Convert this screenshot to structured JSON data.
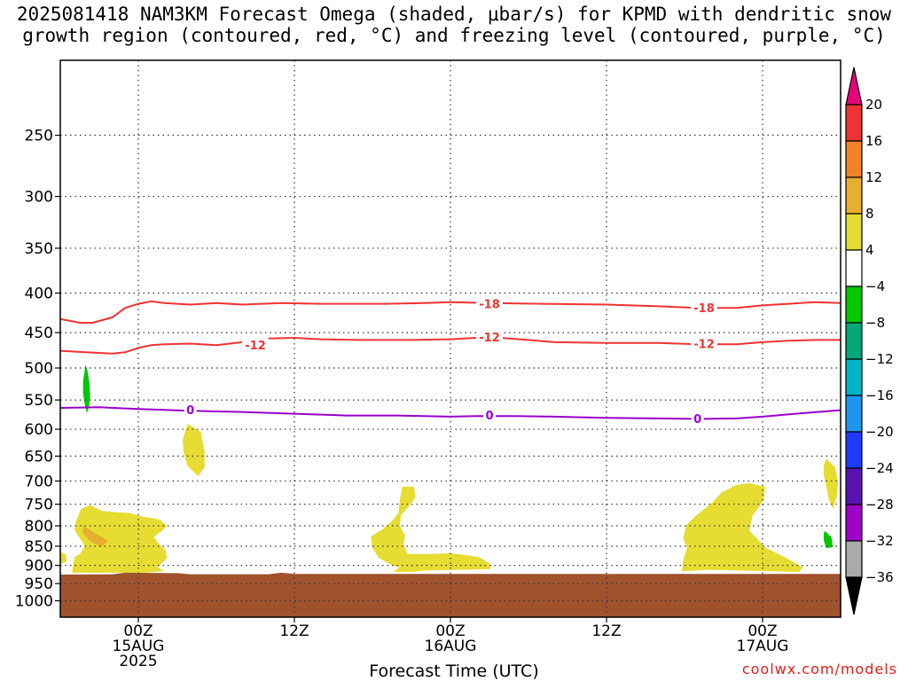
{
  "title_line1": "2025081418 NAM3KM Forecast Omega (shaded, μbar/s) for KPMD with dendritic snow",
  "title_line2": "growth region (contoured, red, °C) and freezing level (contoured, purple, °C)",
  "credit": "coolwx.com/models",
  "colors": {
    "ground": "#a0522d",
    "dgz_contour": "#ee3333",
    "freezing_contour": "#9900cc",
    "omega_pos_4_8": "#e6dc32",
    "omega_pos_8_12": "#e6af2d",
    "omega_pos_12_16": "#f08228",
    "omega_neg_4_8": "#00c800"
  },
  "chart_data": {
    "type": "heatmap",
    "title": "2025081418 NAM3KM Forecast Omega (shaded, μbar/s) for KPMD with dendritic snow growth region (contoured, red, °C) and freezing level (contoured, purple, °C)",
    "xlabel": "Forecast Time (UTC)",
    "ylabel": "",
    "x_range_hours_from_init": [
      0,
      60
    ],
    "y_axis": {
      "scale": "log",
      "inverted": true,
      "range_hPa": [
        1050,
        200
      ],
      "ticks": [
        250,
        300,
        350,
        400,
        450,
        500,
        550,
        600,
        650,
        700,
        750,
        800,
        850,
        900,
        950,
        1000
      ]
    },
    "x_ticks": [
      {
        "label_line1": "00Z",
        "label_line2": "15AUG",
        "label_line3": "2025"
      },
      {
        "label_line1": "12Z",
        "label_line2": "",
        "label_line3": ""
      },
      {
        "label_line1": "00Z",
        "label_line2": "16AUG",
        "label_line3": ""
      },
      {
        "label_line1": "12Z",
        "label_line2": "",
        "label_line3": ""
      },
      {
        "label_line1": "00Z",
        "label_line2": "17AUG",
        "label_line3": ""
      }
    ],
    "x_tick_hours": [
      6,
      18,
      30,
      42,
      54
    ],
    "grid": true,
    "colorbar": {
      "levels": [
        20,
        16,
        12,
        8,
        4,
        -4,
        -8,
        -12,
        -16,
        -20,
        -24,
        -28,
        -32,
        -36
      ],
      "colors": [
        "#ee3333",
        "#f08228",
        "#e6af2d",
        "#e6dc32",
        "#ffffff",
        "#00c800",
        "#00aa78",
        "#00b4c8",
        "#1e96f0",
        "#1e3cff",
        "#5a14b4",
        "#a000c8",
        "#aaaaaa"
      ],
      "top_arrow_color": "#e6007a",
      "bottom_arrow_color": "#000000"
    },
    "contours": [
      {
        "name": "-18",
        "color": "#ee3333",
        "points": [
          [
            0,
            432
          ],
          [
            1.5,
            437
          ],
          [
            2.5,
            437
          ],
          [
            4,
            430
          ],
          [
            5,
            418
          ],
          [
            6,
            413
          ],
          [
            7,
            410
          ],
          [
            8,
            412
          ],
          [
            10,
            414
          ],
          [
            12,
            412
          ],
          [
            14,
            414
          ],
          [
            17,
            412
          ],
          [
            20,
            413
          ],
          [
            25,
            413
          ],
          [
            28,
            412
          ],
          [
            30,
            411
          ],
          [
            33,
            412
          ],
          [
            37,
            413
          ],
          [
            42,
            414
          ],
          [
            46,
            416
          ],
          [
            49,
            418
          ],
          [
            52,
            418
          ],
          [
            54,
            415
          ],
          [
            56,
            413
          ],
          [
            58,
            411
          ],
          [
            60,
            412
          ]
        ],
        "labels": [
          {
            "text": "-18",
            "x": 33,
            "p": 413
          },
          {
            "text": "-18",
            "x": 49.5,
            "p": 418
          }
        ]
      },
      {
        "name": "-12",
        "color": "#ee3333",
        "points": [
          [
            0,
            475
          ],
          [
            2,
            477
          ],
          [
            4,
            479
          ],
          [
            5,
            477
          ],
          [
            6,
            471
          ],
          [
            7,
            467
          ],
          [
            8,
            466
          ],
          [
            10,
            465
          ],
          [
            12,
            467
          ],
          [
            14,
            463
          ],
          [
            16,
            458
          ],
          [
            18,
            457
          ],
          [
            20,
            459
          ],
          [
            23,
            460
          ],
          [
            27,
            460
          ],
          [
            30,
            459
          ],
          [
            33,
            456
          ],
          [
            36,
            460
          ],
          [
            38,
            463
          ],
          [
            42,
            464
          ],
          [
            46,
            464
          ],
          [
            49,
            466
          ],
          [
            52,
            466
          ],
          [
            54,
            463
          ],
          [
            56,
            461
          ],
          [
            58,
            460
          ],
          [
            60,
            460
          ]
        ],
        "labels": [
          {
            "text": "-12",
            "x": 15,
            "p": 467
          },
          {
            "text": "-12",
            "x": 33,
            "p": 456
          },
          {
            "text": "-12",
            "x": 49.5,
            "p": 465
          }
        ]
      },
      {
        "name": "0",
        "color": "#9900cc",
        "points": [
          [
            0,
            563
          ],
          [
            3,
            562
          ],
          [
            6,
            565
          ],
          [
            10,
            568
          ],
          [
            14,
            570
          ],
          [
            18,
            573
          ],
          [
            22,
            576
          ],
          [
            26,
            576
          ],
          [
            30,
            578
          ],
          [
            32,
            577
          ],
          [
            35,
            577
          ],
          [
            38,
            578
          ],
          [
            42,
            580
          ],
          [
            46,
            581
          ],
          [
            49,
            582
          ],
          [
            52,
            581
          ],
          [
            54,
            578
          ],
          [
            57,
            572
          ],
          [
            60,
            567
          ]
        ],
        "labels": [
          {
            "text": "0",
            "x": 10,
            "p": 566
          },
          {
            "text": "0",
            "x": 33,
            "p": 575
          },
          {
            "text": "0",
            "x": 49,
            "p": 581
          }
        ]
      }
    ],
    "shaded_regions": [
      {
        "name": "omega-neg-4-8-a",
        "class": "-4 to -8",
        "color": "#00c800",
        "points": [
          [
            1.95,
            495
          ],
          [
            2.1,
            505
          ],
          [
            2.25,
            525
          ],
          [
            2.3,
            545
          ],
          [
            2.2,
            560
          ],
          [
            2.05,
            572
          ],
          [
            1.9,
            560
          ],
          [
            1.75,
            540
          ],
          [
            1.75,
            520
          ]
        ]
      },
      {
        "name": "omega-neg-4-8-b",
        "class": "-4 to -8",
        "color": "#00c800",
        "points": [
          [
            58.8,
            812
          ],
          [
            59.3,
            828
          ],
          [
            59.4,
            852
          ],
          [
            58.9,
            855
          ],
          [
            58.7,
            835
          ],
          [
            58.7,
            818
          ]
        ]
      },
      {
        "name": "omega-pos-4-8-a",
        "class": "4 to 8",
        "color": "#e6dc32",
        "points": [
          [
            1.1,
            878
          ],
          [
            0.9,
            920
          ],
          [
            6.5,
            920
          ],
          [
            8,
            915
          ],
          [
            7.5,
            905
          ],
          [
            8.2,
            880
          ],
          [
            8.1,
            860
          ],
          [
            7.6,
            845
          ],
          [
            7.2,
            828
          ],
          [
            7.8,
            812
          ],
          [
            8.2,
            800
          ],
          [
            7.6,
            785
          ],
          [
            6.3,
            778
          ],
          [
            5.3,
            770
          ],
          [
            4.2,
            768
          ],
          [
            3.2,
            765
          ],
          [
            2.3,
            752
          ],
          [
            1.6,
            760
          ],
          [
            1.2,
            790
          ],
          [
            1.1,
            810
          ],
          [
            1.5,
            830
          ],
          [
            1.9,
            850
          ],
          [
            1.5,
            870
          ]
        ]
      },
      {
        "name": "omega-pos-4-8-a2",
        "class": "4 to 8",
        "color": "#e6dc32",
        "points": [
          [
            0,
            865
          ],
          [
            0.4,
            870
          ],
          [
            0.5,
            890
          ],
          [
            0.1,
            895
          ],
          [
            0,
            895
          ]
        ]
      },
      {
        "name": "omega-pos-8-12",
        "class": "8 to 12",
        "color": "#e6af2d",
        "points": [
          [
            1.8,
            800
          ],
          [
            2.5,
            815
          ],
          [
            3.7,
            836
          ],
          [
            3.1,
            852
          ],
          [
            2.2,
            835
          ],
          [
            1.7,
            815
          ]
        ]
      },
      {
        "name": "omega-pos-4-8-b",
        "class": "4 to 8",
        "color": "#e6dc32",
        "points": [
          [
            9.8,
            590
          ],
          [
            10.8,
            605
          ],
          [
            11.1,
            640
          ],
          [
            11.1,
            672
          ],
          [
            10.6,
            690
          ],
          [
            9.8,
            670
          ],
          [
            9.5,
            645
          ],
          [
            9.4,
            620
          ]
        ]
      },
      {
        "name": "omega-pos-4-8-c",
        "class": "4 to 8",
        "color": "#e6dc32",
        "points": [
          [
            26.3,
            712
          ],
          [
            27.2,
            712
          ],
          [
            27.3,
            735
          ],
          [
            26.8,
            755
          ],
          [
            26.2,
            775
          ],
          [
            26.1,
            800
          ],
          [
            26.5,
            822
          ],
          [
            26.4,
            845
          ],
          [
            26.7,
            870
          ],
          [
            28.5,
            870
          ],
          [
            30,
            868
          ],
          [
            31,
            872
          ],
          [
            32.2,
            878
          ],
          [
            33,
            895
          ],
          [
            33.1,
            910
          ],
          [
            28,
            914
          ],
          [
            27,
            918
          ],
          [
            25.6,
            918
          ],
          [
            26.1,
            905
          ],
          [
            25.5,
            900
          ],
          [
            24.5,
            880
          ],
          [
            24,
            855
          ],
          [
            23.9,
            825
          ],
          [
            24.7,
            810
          ],
          [
            25.4,
            792
          ],
          [
            26,
            770
          ],
          [
            26.1,
            742
          ]
        ]
      },
      {
        "name": "omega-pos-4-8-d",
        "class": "4 to 8",
        "color": "#e6dc32",
        "points": [
          [
            50.8,
            725
          ],
          [
            52,
            708
          ],
          [
            53,
            705
          ],
          [
            54.2,
            712
          ],
          [
            54.1,
            740
          ],
          [
            53.2,
            778
          ],
          [
            53,
            812
          ],
          [
            54.3,
            855
          ],
          [
            55.8,
            880
          ],
          [
            57.1,
            905
          ],
          [
            56.8,
            918
          ],
          [
            54.7,
            916
          ],
          [
            49.8,
            912
          ],
          [
            47.8,
            916
          ],
          [
            47.9,
            885
          ],
          [
            48.2,
            855
          ],
          [
            47.9,
            830
          ],
          [
            48.1,
            800
          ],
          [
            48.9,
            775
          ],
          [
            49.7,
            757
          ],
          [
            50.2,
            745
          ]
        ]
      },
      {
        "name": "omega-pos-4-8-e",
        "class": "4 to 8",
        "color": "#e6dc32",
        "points": [
          [
            58.9,
            655
          ],
          [
            59.6,
            672
          ],
          [
            59.8,
            705
          ],
          [
            59.7,
            735
          ],
          [
            59.4,
            760
          ],
          [
            59.1,
            740
          ],
          [
            58.9,
            712
          ],
          [
            58.7,
            688
          ],
          [
            58.7,
            668
          ]
        ]
      },
      {
        "name": "ground",
        "class": "below ground",
        "color": "#a0522d",
        "points": [
          [
            0,
            1050
          ],
          [
            0,
            925
          ],
          [
            4,
            924
          ],
          [
            5,
            920
          ],
          [
            9,
            921
          ],
          [
            10,
            924
          ],
          [
            16,
            924
          ],
          [
            17,
            920
          ],
          [
            18,
            923
          ],
          [
            60,
            923
          ],
          [
            60,
            1050
          ]
        ]
      }
    ]
  }
}
